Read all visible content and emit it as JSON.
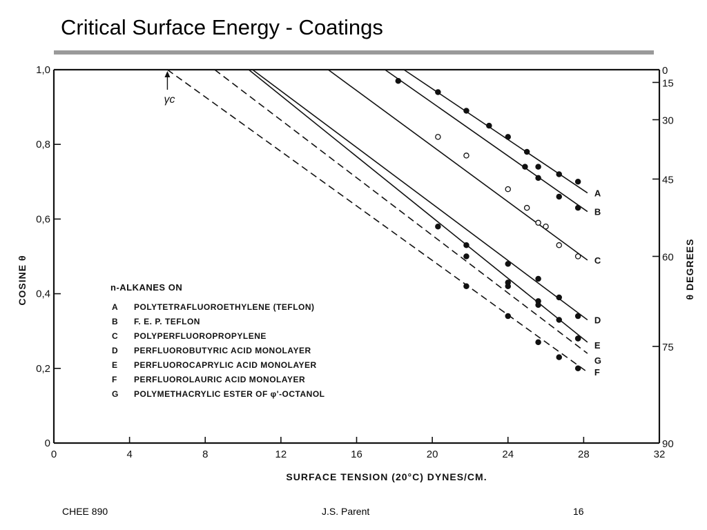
{
  "slide": {
    "title": "Critical Surface Energy - Coatings",
    "footer_left": "CHEE 890",
    "footer_center": "J.S. Parent",
    "footer_right": "16"
  },
  "chart_data": {
    "type": "line",
    "title": "",
    "xlabel": "SURFACE TENSION (20°C) DYNES/CM.",
    "ylabel": "COSINE θ",
    "y2label": "θ DEGREES",
    "xlim": [
      0,
      32
    ],
    "ylim": [
      0,
      1.0
    ],
    "x_ticks": [
      0,
      4,
      8,
      12,
      16,
      20,
      24,
      28,
      32
    ],
    "x_tick_labels": [
      "0",
      "4",
      "8",
      "12",
      "16",
      "20",
      "24",
      "28",
      "32"
    ],
    "y_ticks": [
      0,
      0.2,
      0.4,
      0.6,
      0.8,
      1.0
    ],
    "y_tick_labels": [
      "0",
      "0,2",
      "0,4",
      "0,6",
      "0,8",
      "1,0"
    ],
    "y2_ticks": [
      0,
      15,
      30,
      45,
      60,
      75,
      90
    ],
    "y2_tick_labels": [
      "0",
      "15",
      "30",
      "45",
      "60",
      "75",
      "90"
    ],
    "grid": false,
    "annotation": "γc",
    "annotation_x": 6,
    "legend": {
      "heading": "n-ALKANES ON",
      "entries": [
        {
          "key": "A",
          "label": "POLYTETRAFLUOROETHYLENE (TEFLON)"
        },
        {
          "key": "B",
          "label": "F. E. P. TEFLON"
        },
        {
          "key": "C",
          "label": "POLYPERFLUOROPROPYLENE"
        },
        {
          "key": "D",
          "label": "PERFLUOROBUTYRIC ACID MONOLAYER"
        },
        {
          "key": "E",
          "label": "PERFLUOROCAPRYLIC ACID MONOLAYER"
        },
        {
          "key": "F",
          "label": "PERFLUOROLAURIC ACID MONOLAYER"
        },
        {
          "key": "G",
          "label": "POLYMETHACRYLIC ESTER OF φ'-OCTANOL"
        }
      ]
    },
    "series": [
      {
        "key": "A",
        "x": [
          20.3,
          21.8,
          23.0,
          24.0,
          25.0,
          25.6,
          26.7,
          27.7
        ],
        "y": [
          0.94,
          0.89,
          0.85,
          0.82,
          0.78,
          0.74,
          0.72,
          0.7
        ],
        "line_x": [
          18.5,
          28.2
        ],
        "line_y": [
          1.0,
          0.67
        ]
      },
      {
        "key": "B",
        "x": [
          18.2,
          24.9,
          25.6,
          26.7,
          27.7
        ],
        "y": [
          0.97,
          0.74,
          0.71,
          0.66,
          0.63
        ],
        "line_x": [
          17.5,
          28.2
        ],
        "line_y": [
          1.0,
          0.62
        ]
      },
      {
        "key": "C",
        "x": [
          20.3,
          21.8,
          24.0,
          25.0,
          25.6,
          26.0,
          26.7,
          27.7
        ],
        "y": [
          0.82,
          0.77,
          0.68,
          0.63,
          0.59,
          0.58,
          0.53,
          0.5
        ],
        "line_x": [
          14.5,
          28.2
        ],
        "line_y": [
          1.0,
          0.49
        ]
      },
      {
        "key": "D",
        "x": [
          24.0,
          25.6,
          26.7,
          27.7
        ],
        "y": [
          0.48,
          0.44,
          0.39,
          0.34
        ],
        "line_x": [
          10.5,
          28.2
        ],
        "line_y": [
          1.0,
          0.33
        ]
      },
      {
        "key": "E",
        "x": [
          20.3,
          21.8,
          24.0,
          25.6,
          26.7,
          27.7
        ],
        "y": [
          0.58,
          0.53,
          0.43,
          0.38,
          0.33,
          0.28
        ],
        "line_x": [
          10.3,
          28.2
        ],
        "line_y": [
          1.0,
          0.27
        ]
      },
      {
        "key": "F",
        "x": [
          21.8,
          24.0,
          25.6,
          26.7,
          27.7
        ],
        "y": [
          0.42,
          0.34,
          0.27,
          0.23,
          0.2
        ],
        "line_x": [
          6.0,
          28.2
        ],
        "line_y": [
          1.0,
          0.19
        ]
      },
      {
        "key": "G",
        "x": [
          21.8,
          24.0,
          25.6,
          27.7
        ],
        "y": [
          0.5,
          0.42,
          0.37,
          0.28
        ],
        "line_x": [
          8.5,
          28.2
        ],
        "line_y": [
          1.0,
          0.24
        ]
      }
    ]
  }
}
